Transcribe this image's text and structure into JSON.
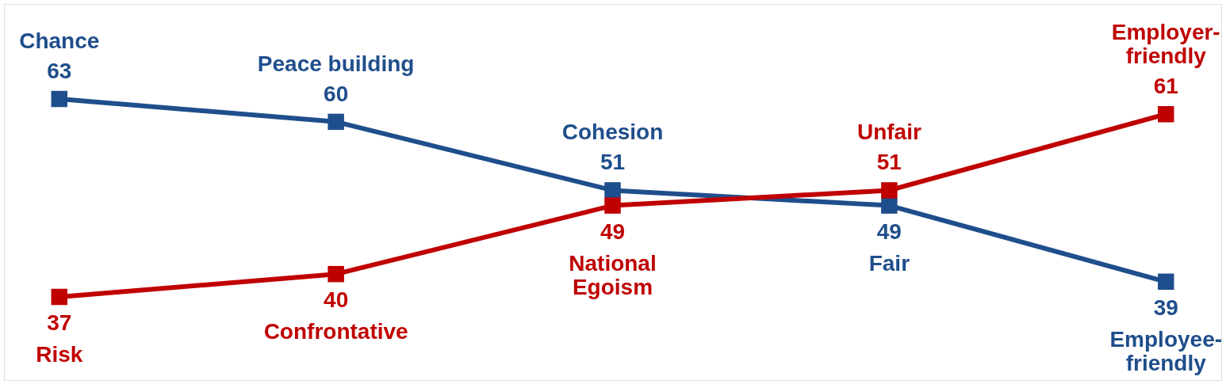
{
  "chart_data": {
    "type": "line",
    "categories": [
      null,
      null,
      null,
      null,
      null
    ],
    "series": [
      {
        "color": "#1f4e8c",
        "values": [
          63,
          60,
          51,
          49,
          39
        ]
      },
      {
        "color": "#c00000",
        "values": [
          37,
          40,
          49,
          51,
          61
        ]
      }
    ],
    "marker": "square",
    "line_style": "solid",
    "data_labels": true,
    "tick_labels": false,
    "annotations": [
      "Chance",
      "Peace building",
      "Cohesion",
      "Fair",
      "Employee-\nfriendly",
      "Risk",
      "Confrontative",
      "National\nEgoism",
      "Unfair",
      "Employer-\nfriendly"
    ]
  }
}
